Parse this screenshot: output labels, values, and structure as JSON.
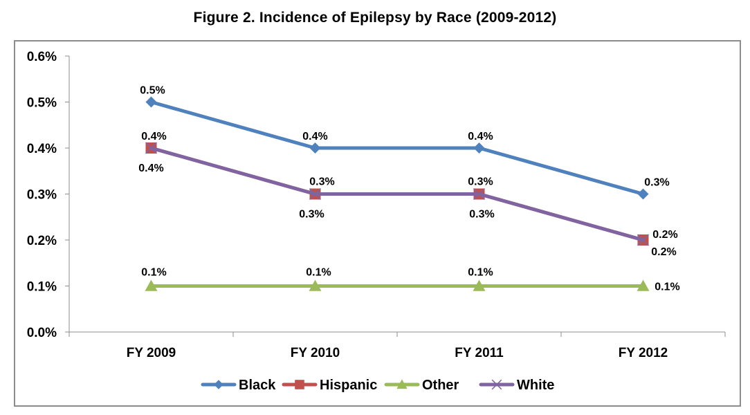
{
  "chart_data": {
    "type": "line",
    "title": "Figure 2. Incidence of Epilepsy by Race (2009-2012)",
    "xlabel": "",
    "ylabel": "",
    "categories": [
      "FY 2009",
      "FY 2010",
      "FY 2011",
      "FY 2012"
    ],
    "ylim": [
      0.0,
      0.6
    ],
    "yticks": [
      0.0,
      0.1,
      0.2,
      0.3,
      0.4,
      0.5,
      0.6
    ],
    "ytick_labels": [
      "0.0%",
      "0.1%",
      "0.2%",
      "0.3%",
      "0.4%",
      "0.5%",
      "0.6%"
    ],
    "grid": false,
    "legend_position": "bottom",
    "series": [
      {
        "name": "Black",
        "color": "#4f81bd",
        "marker": "diamond",
        "values": [
          0.5,
          0.4,
          0.4,
          0.3
        ],
        "labels": [
          "0.5%",
          "0.4%",
          "0.4%",
          "0.3%"
        ]
      },
      {
        "name": "Hispanic",
        "color": "#c0504d",
        "marker": "square",
        "values": [
          0.4,
          0.3,
          0.3,
          0.2
        ],
        "labels": [
          "0.4%",
          "0.3%",
          "0.3%",
          "0.2%"
        ]
      },
      {
        "name": "Other",
        "color": "#9bbb59",
        "marker": "triangle",
        "values": [
          0.1,
          0.1,
          0.1,
          0.1
        ],
        "labels": [
          "0.1%",
          "0.1%",
          "0.1%",
          "0.1%"
        ]
      },
      {
        "name": "White",
        "color": "#8064a2",
        "marker": "x",
        "values": [
          0.4,
          0.3,
          0.3,
          0.2
        ],
        "labels": [
          "0.4%",
          "0.3%",
          "0.3%",
          "0.2%"
        ]
      }
    ]
  }
}
